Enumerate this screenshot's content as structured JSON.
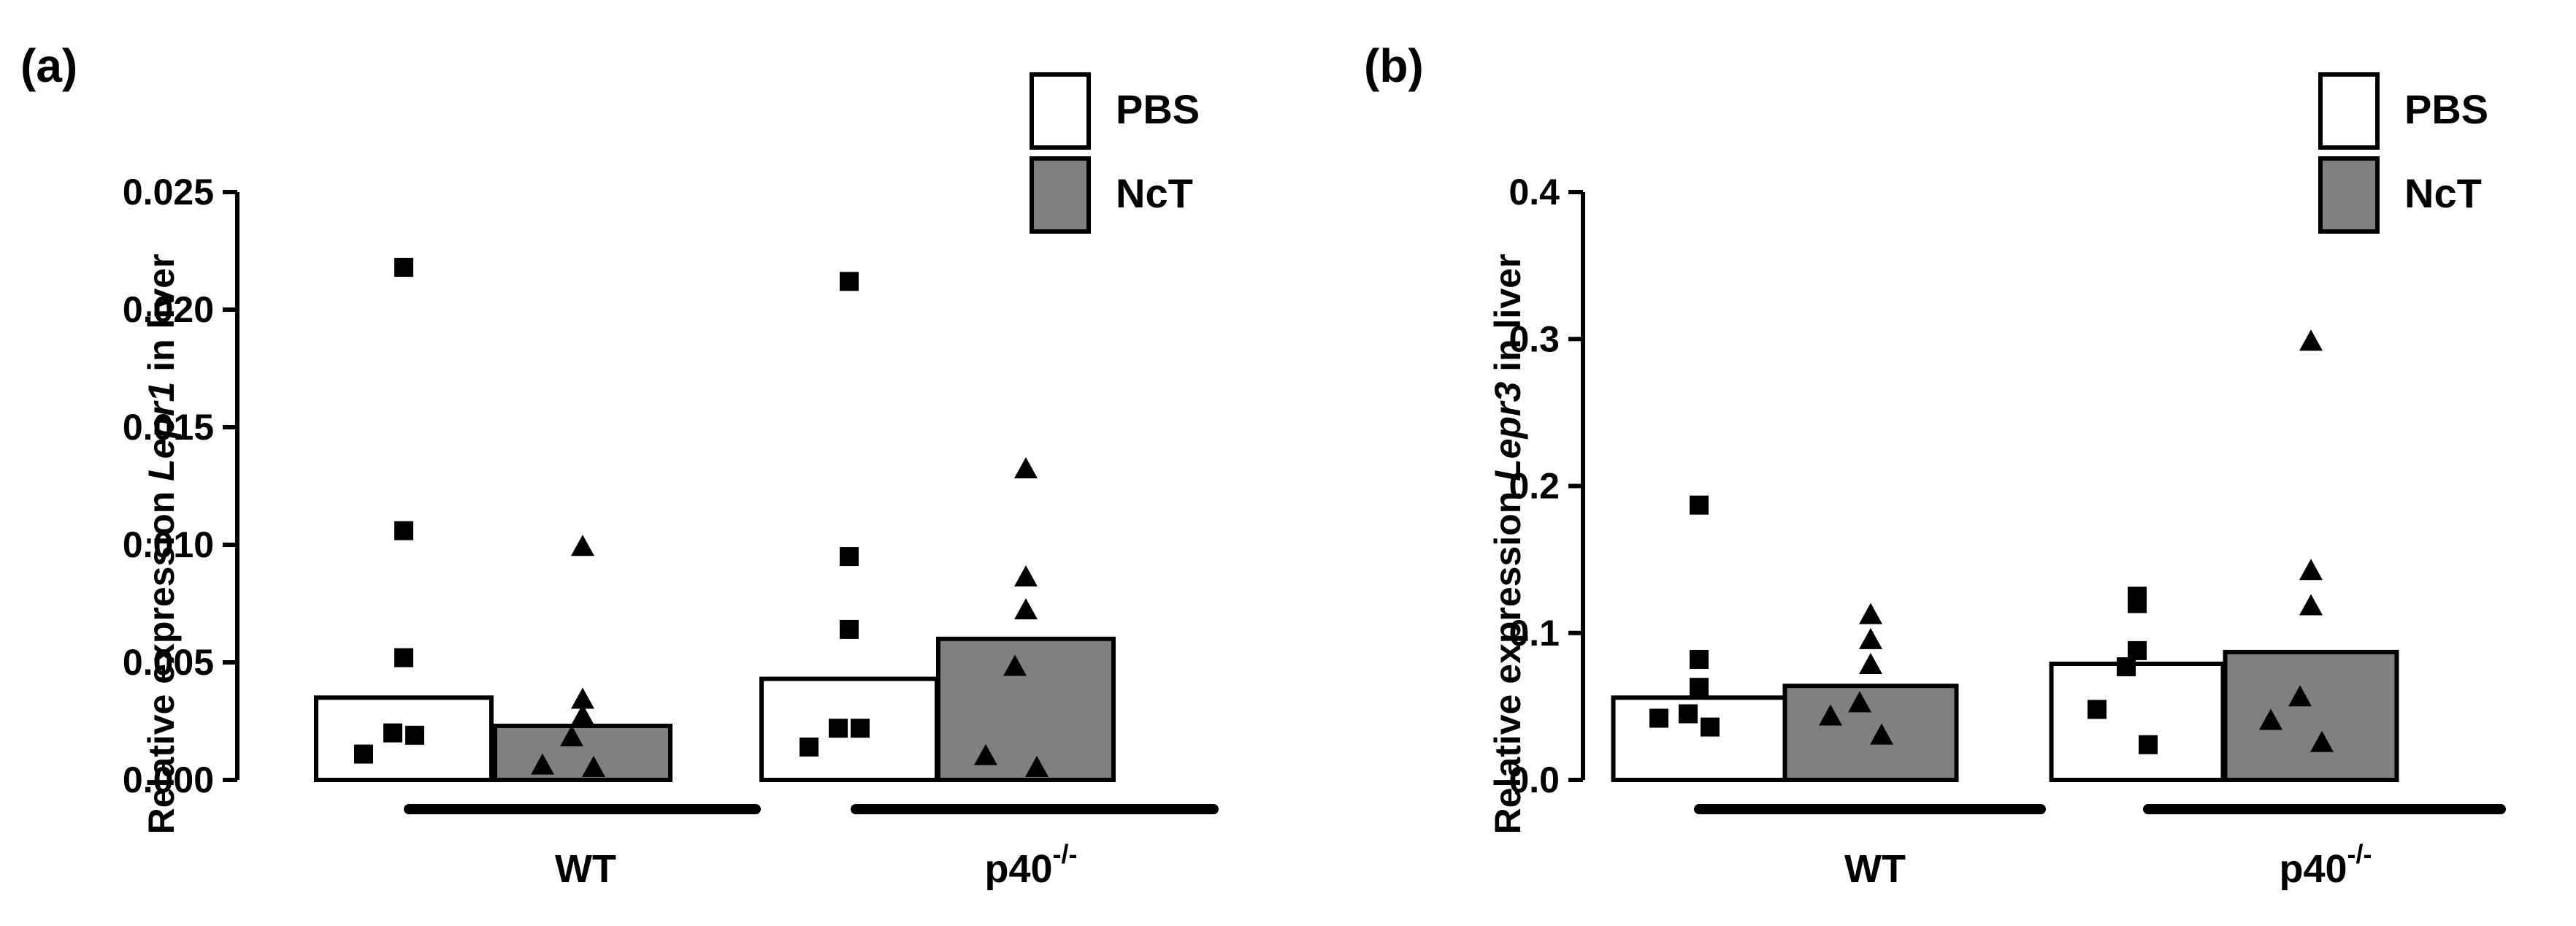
{
  "colors": {
    "pbs_fill": "#ffffff",
    "nct_fill": "#808080",
    "ink": "#000000"
  },
  "chart_data": [
    {
      "type": "bar",
      "panel_label": "(a)",
      "ylabel": {
        "prefix": "Relative expression  ",
        "gene": "Lepr1",
        "suffix": " in liver"
      },
      "ylim": [
        0,
        0.025
      ],
      "yticks": [
        0.0,
        0.005,
        0.01,
        0.015,
        0.02,
        0.025
      ],
      "ytick_labels": [
        "0.000",
        "0.005",
        "0.010",
        "0.015",
        "0.020",
        "0.025"
      ],
      "groups": [
        {
          "label": "WT",
          "sup": ""
        },
        {
          "label": "p40",
          "sup": "-/-"
        }
      ],
      "legend": [
        {
          "name": "PBS"
        },
        {
          "name": "NcT"
        }
      ],
      "series": [
        {
          "name": "PBS",
          "marker": "square",
          "values": [
            0.0035,
            0.0043
          ],
          "points": [
            [
              0.0218,
              0.0106,
              0.0052,
              0.002,
              0.0011,
              0.0019
            ],
            [
              0.0212,
              0.0095,
              0.0064,
              0.0022,
              0.0014,
              0.0022
            ]
          ]
        },
        {
          "name": "NcT",
          "marker": "triangle",
          "values": [
            0.0023,
            0.006
          ],
          "points": [
            [
              0.0099,
              0.0034,
              0.0027,
              0.0018,
              0.0006,
              0.0005
            ],
            [
              0.0132,
              0.0086,
              0.0072,
              0.0048,
              0.001,
              0.0005
            ]
          ]
        }
      ]
    },
    {
      "type": "bar",
      "panel_label": "(b)",
      "ylabel": {
        "prefix": "Relative expression  ",
        "gene": "Lepr3",
        "suffix": " in liver"
      },
      "ylim": [
        0,
        0.4
      ],
      "yticks": [
        0.0,
        0.1,
        0.2,
        0.3,
        0.4
      ],
      "ytick_labels": [
        "0.0",
        "0.1",
        "0.2",
        "0.3",
        "0.4"
      ],
      "groups": [
        {
          "label": "WT",
          "sup": ""
        },
        {
          "label": "p40",
          "sup": "-/-"
        }
      ],
      "legend": [
        {
          "name": "PBS"
        },
        {
          "name": "NcT"
        }
      ],
      "series": [
        {
          "name": "PBS",
          "marker": "square",
          "values": [
            0.056,
            0.079
          ],
          "points": [
            [
              0.187,
              0.082,
              0.063,
              0.045,
              0.042,
              0.036
            ],
            [
              0.125,
              0.12,
              0.088,
              0.077,
              0.048,
              0.024
            ]
          ]
        },
        {
          "name": "NcT",
          "marker": "triangle",
          "values": [
            0.064,
            0.087
          ],
          "points": [
            [
              0.112,
              0.095,
              0.078,
              0.052,
              0.043,
              0.03
            ],
            [
              0.298,
              0.142,
              0.118,
              0.056,
              0.04,
              0.025
            ]
          ]
        }
      ]
    }
  ]
}
